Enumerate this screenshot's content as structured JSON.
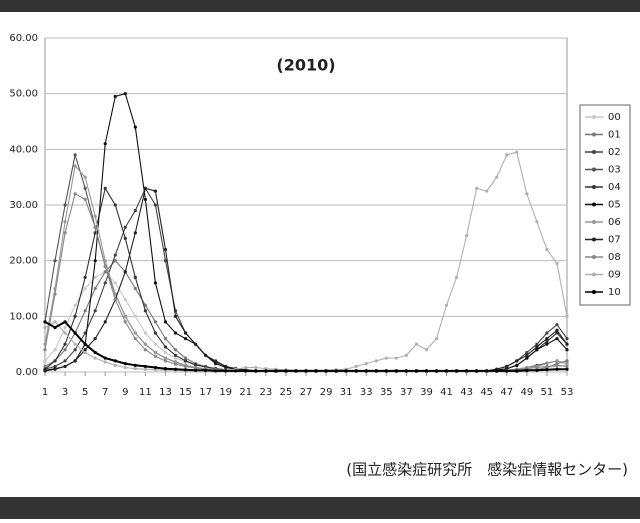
{
  "chart_data": {
    "type": "line",
    "title": "(2010)",
    "source": "(国立感染症研究所　感染症情報センター)",
    "x": [
      1,
      2,
      3,
      4,
      5,
      6,
      7,
      8,
      9,
      10,
      11,
      12,
      13,
      14,
      15,
      16,
      17,
      18,
      19,
      20,
      21,
      22,
      23,
      24,
      25,
      26,
      27,
      28,
      29,
      30,
      31,
      32,
      33,
      34,
      35,
      36,
      37,
      38,
      39,
      40,
      41,
      42,
      43,
      44,
      45,
      46,
      47,
      48,
      49,
      50,
      51,
      52,
      53
    ],
    "xlim": [
      1,
      53
    ],
    "xticks": [
      1,
      3,
      5,
      7,
      9,
      11,
      13,
      15,
      17,
      19,
      21,
      23,
      25,
      27,
      29,
      31,
      33,
      35,
      37,
      39,
      41,
      43,
      45,
      47,
      49,
      51,
      53
    ],
    "ylim": [
      0,
      60
    ],
    "yticks": [
      {
        "value": 0,
        "label": "0.00"
      },
      {
        "value": 10,
        "label": "10.00"
      },
      {
        "value": 20,
        "label": "20.00"
      },
      {
        "value": 30,
        "label": "30.00"
      },
      {
        "value": 40,
        "label": "40.00"
      },
      {
        "value": 50,
        "label": "50.00"
      },
      {
        "value": 60,
        "label": "60.00"
      }
    ],
    "grid": true,
    "legend": "right",
    "series": [
      {
        "name": "00",
        "color": "#c8c8c8",
        "values": [
          2,
          4,
          8,
          12,
          15,
          17,
          18,
          16,
          13,
          10,
          7,
          5,
          3.5,
          2.5,
          1.8,
          1.2,
          0.9,
          0.6,
          0.4,
          0.3,
          0.2,
          0.1,
          0.1,
          0.1,
          0.1,
          0.1,
          0.1,
          0.1,
          0.1,
          0.1,
          0.1,
          0.1,
          0.1,
          0.1,
          0.1,
          0.1,
          0.1,
          0.1,
          0.1,
          0.1,
          0.1,
          0.1,
          0.1,
          0.1,
          0.1,
          0.1,
          0.1,
          0.1,
          0.3,
          0.5,
          0.8,
          1,
          1.2
        ]
      },
      {
        "name": "01",
        "color": "#777777",
        "values": [
          1,
          2,
          4,
          7,
          11,
          15,
          18,
          20,
          18,
          15,
          12,
          9,
          6,
          4,
          2.5,
          1.5,
          1,
          0.6,
          0.4,
          0.3,
          0.2,
          0.1,
          0.1,
          0.1,
          0.1,
          0.1,
          0.1,
          0.1,
          0.1,
          0.1,
          0.1,
          0.1,
          0.1,
          0.1,
          0.1,
          0.1,
          0.1,
          0.1,
          0.1,
          0.1,
          0.1,
          0.1,
          0.1,
          0.1,
          0.1,
          0.1,
          0.1,
          0.1,
          0.2,
          0.4,
          0.8,
          1.5,
          2
        ]
      },
      {
        "name": "02",
        "color": "#444444",
        "values": [
          0.5,
          1,
          2,
          4,
          7,
          11,
          16,
          21,
          26,
          29,
          33,
          30,
          20,
          11,
          7,
          5,
          3,
          2,
          1,
          0.6,
          0.4,
          0.2,
          0.2,
          0.2,
          0.2,
          0.2,
          0.2,
          0.2,
          0.2,
          0.2,
          0.2,
          0.2,
          0.2,
          0.2,
          0.2,
          0.2,
          0.2,
          0.2,
          0.2,
          0.2,
          0.2,
          0.2,
          0.2,
          0.2,
          0.2,
          0.5,
          1,
          2,
          3.5,
          5,
          7,
          8.5,
          6
        ]
      },
      {
        "name": "03",
        "color": "#555555",
        "values": [
          9,
          20,
          30,
          39,
          33,
          26,
          19,
          14,
          10,
          7,
          5,
          3.5,
          2.5,
          1.8,
          1.2,
          0.8,
          0.5,
          0.4,
          0.3,
          0.2,
          0.2,
          0.1,
          0.1,
          0.1,
          0.1,
          0.1,
          0.1,
          0.1,
          0.1,
          0.1,
          0.1,
          0.1,
          0.1,
          0.1,
          0.1,
          0.1,
          0.1,
          0.1,
          0.1,
          0.1,
          0.1,
          0.1,
          0.1,
          0.1,
          0.1,
          0.2,
          0.3,
          0.5,
          0.8,
          1.2,
          1.6,
          2,
          1.5
        ]
      },
      {
        "name": "04",
        "color": "#333333",
        "values": [
          0.5,
          2,
          5,
          10,
          17,
          25,
          33,
          30,
          24,
          17,
          11,
          7,
          4.5,
          3,
          2,
          1.3,
          0.9,
          0.6,
          0.4,
          0.3,
          0.2,
          0.1,
          0.1,
          0.1,
          0.1,
          0.1,
          0.1,
          0.1,
          0.1,
          0.1,
          0.1,
          0.1,
          0.1,
          0.1,
          0.1,
          0.1,
          0.1,
          0.1,
          0.1,
          0.1,
          0.1,
          0.1,
          0.1,
          0.1,
          0.1,
          0.3,
          0.6,
          1.2,
          2.5,
          4,
          5.5,
          7,
          5
        ]
      },
      {
        "name": "05",
        "color": "#111111",
        "values": [
          0.2,
          0.5,
          1,
          2,
          5,
          20,
          41,
          49.5,
          50,
          44,
          31,
          16,
          9,
          7,
          6,
          5,
          3,
          1.5,
          0.8,
          0.5,
          0.3,
          0.1,
          0.1,
          0.1,
          0.1,
          0.1,
          0.1,
          0.1,
          0.1,
          0.1,
          0.1,
          0.1,
          0.1,
          0.1,
          0.1,
          0.1,
          0.1,
          0.1,
          0.1,
          0.1,
          0.1,
          0.1,
          0.1,
          0.1,
          0.1,
          0.3,
          0.6,
          1.2,
          2.5,
          4,
          5,
          6,
          4
        ]
      },
      {
        "name": "06",
        "color": "#999999",
        "values": [
          5,
          15,
          27,
          37,
          35,
          28,
          20,
          14,
          10,
          7,
          5,
          3.5,
          2.5,
          1.7,
          1.2,
          0.8,
          0.6,
          0.4,
          0.3,
          0.2,
          0.2,
          0.1,
          0.1,
          0.1,
          0.1,
          0.1,
          0.1,
          0.1,
          0.1,
          0.1,
          0.1,
          0.1,
          0.1,
          0.1,
          0.1,
          0.1,
          0.1,
          0.1,
          0.1,
          0.1,
          0.1,
          0.1,
          0.1,
          0.1,
          0.1,
          0.2,
          0.3,
          0.5,
          0.8,
          1,
          1.5,
          2,
          1.5
        ]
      },
      {
        "name": "07",
        "color": "#222222",
        "values": [
          0.3,
          0.6,
          1,
          2,
          4,
          6,
          9,
          13,
          18,
          25,
          33,
          32.5,
          22,
          10,
          7,
          5,
          3,
          1.8,
          1,
          0.6,
          0.4,
          0.2,
          0.2,
          0.2,
          0.2,
          0.2,
          0.2,
          0.2,
          0.2,
          0.2,
          0.2,
          0.2,
          0.2,
          0.2,
          0.2,
          0.2,
          0.2,
          0.2,
          0.2,
          0.2,
          0.2,
          0.2,
          0.2,
          0.2,
          0.2,
          0.5,
          1,
          2,
          3,
          4.5,
          6,
          7.5,
          5
        ]
      },
      {
        "name": "08",
        "color": "#888888",
        "values": [
          4,
          14,
          25,
          32,
          31,
          26,
          19,
          13,
          9,
          6,
          4,
          2.8,
          2,
          1.4,
          1,
          0.7,
          0.5,
          0.4,
          0.3,
          0.2,
          0.2,
          0.1,
          0.1,
          0.1,
          0.1,
          0.1,
          0.1,
          0.1,
          0.1,
          0.1,
          0.1,
          0.1,
          0.1,
          0.1,
          0.1,
          0.1,
          0.1,
          0.1,
          0.1,
          0.1,
          0.1,
          0.1,
          0.1,
          0.1,
          0.1,
          0.2,
          0.3,
          0.4,
          0.6,
          0.8,
          1,
          1.2,
          1
        ]
      },
      {
        "name": "09",
        "color": "#b0b0b0",
        "values": [
          8,
          9,
          7,
          5,
          3.5,
          2.5,
          1.8,
          1.2,
          0.8,
          0.6,
          0.5,
          0.4,
          0.3,
          0.3,
          0.2,
          0.2,
          0.2,
          0.2,
          0.3,
          0.5,
          0.8,
          0.8,
          0.6,
          0.5,
          0.4,
          0.3,
          0.3,
          0.3,
          0.3,
          0.4,
          0.5,
          1,
          1.5,
          2,
          2.5,
          2.5,
          3,
          5,
          4,
          6,
          12,
          17,
          24.5,
          33,
          32.5,
          35,
          39,
          39.5,
          32,
          27,
          22,
          19.5,
          10
        ]
      },
      {
        "name": "10",
        "color": "#000000",
        "values": [
          9,
          8,
          9,
          7,
          5,
          3.5,
          2.5,
          2,
          1.5,
          1.2,
          1,
          0.8,
          0.6,
          0.5,
          0.4,
          0.3,
          0.3,
          0.2,
          0.2,
          0.2,
          0.2,
          0.2,
          0.2,
          0.2,
          0.2,
          0.2,
          0.2,
          0.2,
          0.2,
          0.2,
          0.2,
          0.2,
          0.2,
          0.2,
          0.2,
          0.2,
          0.2,
          0.2,
          0.2,
          0.2,
          0.2,
          0.2,
          0.2,
          0.2,
          0.2,
          0.2,
          0.2,
          0.2,
          0.3,
          0.3,
          0.4,
          0.5,
          0.5
        ]
      }
    ]
  }
}
